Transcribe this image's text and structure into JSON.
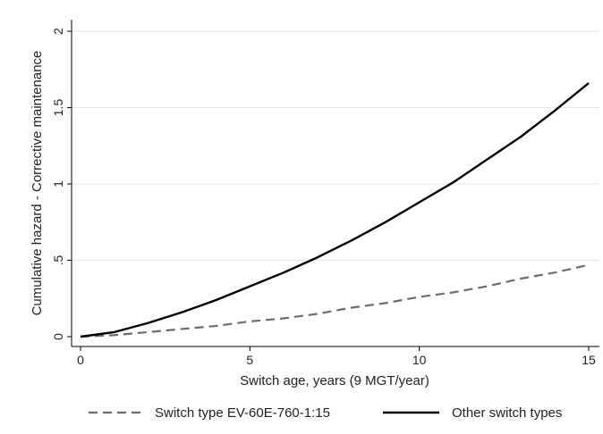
{
  "chart_data": {
    "type": "line",
    "xlabel": "Switch age, years (9 MGT/year)",
    "ylabel": "Cumulative hazard - Corrective maintenance",
    "xlim": [
      0,
      15
    ],
    "ylim": [
      0,
      2
    ],
    "x_ticks": [
      0,
      5,
      10,
      15
    ],
    "x_tick_labels": [
      "0",
      "5",
      "10",
      "15"
    ],
    "y_ticks": [
      0,
      0.5,
      1,
      1.5,
      2
    ],
    "y_tick_labels": [
      "0",
      ".5",
      "1",
      "1.5",
      "2"
    ],
    "grid": true,
    "legend_position": "bottom",
    "x": [
      0,
      1,
      2,
      3,
      4,
      5,
      6,
      7,
      8,
      9,
      10,
      11,
      12,
      13,
      14,
      15
    ],
    "series": [
      {
        "name": "Switch type EV-60E-760-1:15",
        "style": "dashed",
        "color": "#6b6b6b",
        "values": [
          0,
          0.01,
          0.03,
          0.05,
          0.07,
          0.1,
          0.12,
          0.15,
          0.19,
          0.22,
          0.26,
          0.29,
          0.33,
          0.38,
          0.42,
          0.47
        ]
      },
      {
        "name": "Other switch types",
        "style": "solid",
        "color": "#000000",
        "values": [
          0,
          0.03,
          0.09,
          0.16,
          0.24,
          0.33,
          0.42,
          0.52,
          0.63,
          0.75,
          0.88,
          1.01,
          1.16,
          1.31,
          1.48,
          1.66
        ]
      }
    ]
  }
}
